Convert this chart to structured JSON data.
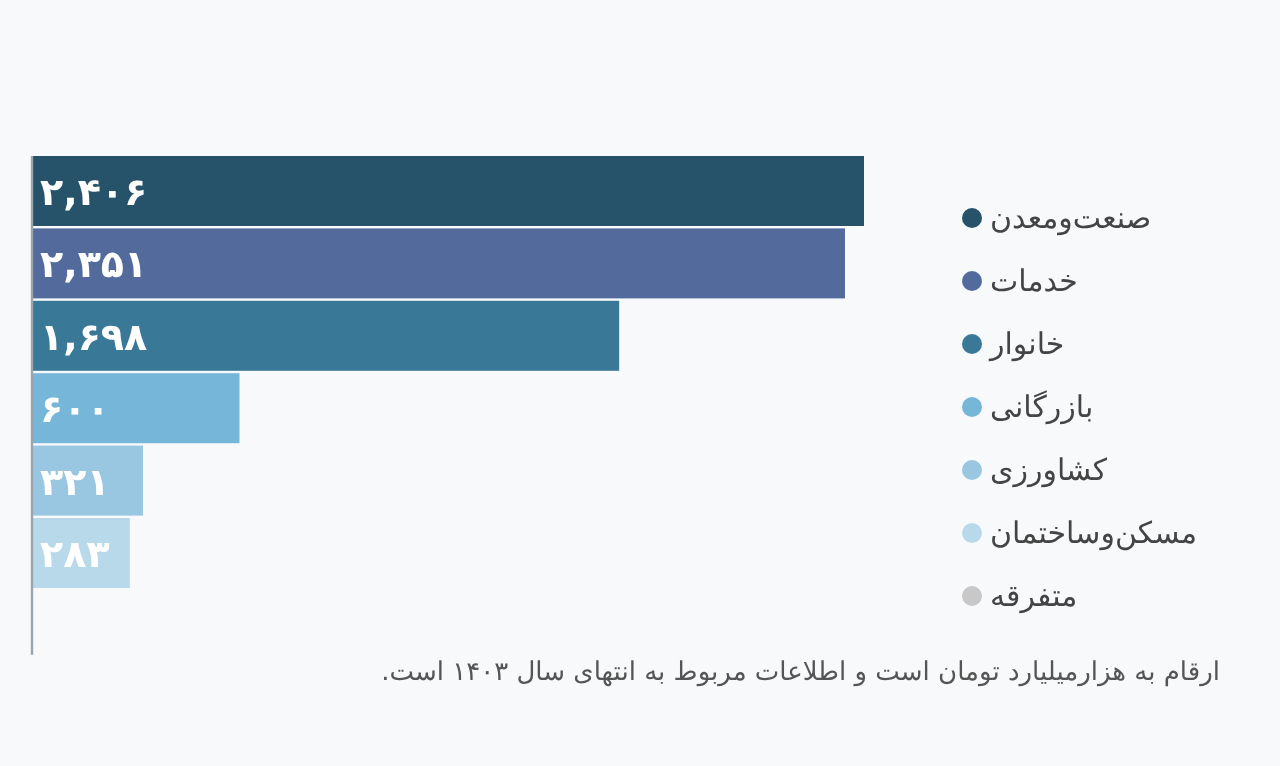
{
  "chart_data": {
    "type": "bar",
    "orientation": "horizontal",
    "categories": [
      "صنعت‌ومعدن",
      "خدمات",
      "خانوار",
      "بازرگانی",
      "کشاورزی",
      "مسکن‌وساختمان",
      "متفرقه"
    ],
    "values": [
      2406,
      2351,
      1698,
      600,
      321,
      283,
      null
    ],
    "value_labels": [
      "۲,۴۰۶",
      "۲,۳۵۱",
      "۱,۶۹۸",
      "۶۰۰",
      "۳۲۱",
      "۲۸۳",
      null
    ],
    "colors": [
      "#27536a",
      "#526b9c",
      "#3a7898",
      "#76b6d8",
      "#99c6e1",
      "#b8d9ea",
      "#c8c8c8"
    ],
    "annotations": [
      "ارقام به هزارمیلیارد تومان است و اطلاعات مربوط به انتهای سال ۱۴۰۳ است."
    ]
  }
}
